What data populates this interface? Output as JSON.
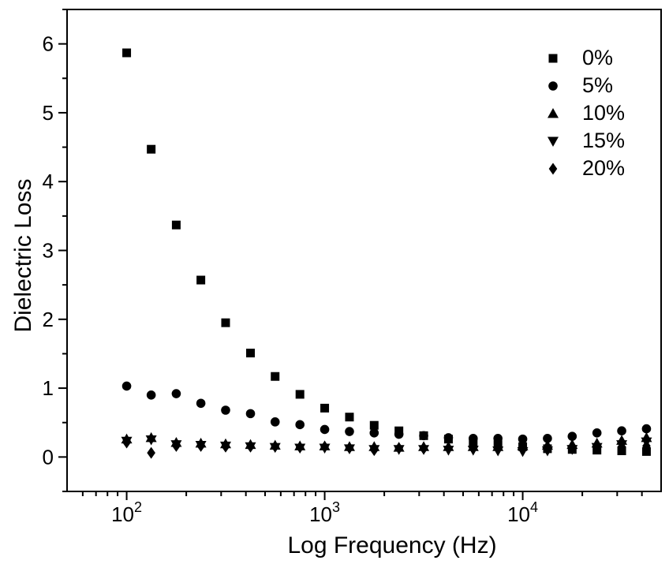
{
  "figure": {
    "background": "#ffffff",
    "foreground": "#000000"
  },
  "chart_data": {
    "type": "scatter",
    "title": "",
    "xlabel": "Log Frequency (Hz)",
    "ylabel": "Dielectric Loss",
    "x_scale": "log",
    "xlim": [
      50,
      50000
    ],
    "ylim": [
      -0.5,
      6.5
    ],
    "grid": false,
    "legend_position": "top-right",
    "marker_color": "#000000",
    "x_major_ticks": [
      {
        "value": 100,
        "label_base": "10",
        "label_exp": "2"
      },
      {
        "value": 1000,
        "label_base": "10",
        "label_exp": "3"
      },
      {
        "value": 10000,
        "label_base": "10",
        "label_exp": "4"
      }
    ],
    "y_major_ticks": [
      0,
      1,
      2,
      3,
      4,
      5,
      6
    ],
    "y_minor_step": 0.5,
    "x": [
      100,
      133,
      178,
      237,
      316,
      422,
      562,
      750,
      1000,
      1334,
      1778,
      2371,
      3162,
      4217,
      5623,
      7499,
      10000,
      13335,
      17783,
      23714,
      31623,
      42170
    ],
    "series": [
      {
        "name": "0%",
        "marker": "square",
        "values": [
          5.87,
          4.47,
          3.37,
          2.57,
          1.95,
          1.51,
          1.17,
          0.91,
          0.71,
          0.58,
          0.46,
          0.38,
          0.31,
          0.26,
          0.22,
          0.18,
          0.15,
          0.12,
          0.11,
          0.1,
          0.09,
          0.08
        ]
      },
      {
        "name": "5%",
        "marker": "circle",
        "values": [
          1.03,
          0.9,
          0.92,
          0.78,
          0.68,
          0.63,
          0.51,
          0.47,
          0.4,
          0.37,
          0.35,
          0.33,
          0.31,
          0.28,
          0.27,
          0.27,
          0.26,
          0.27,
          0.3,
          0.35,
          0.38,
          0.41
        ]
      },
      {
        "name": "10%",
        "marker": "triangle-up",
        "values": [
          0.26,
          0.28,
          0.21,
          0.2,
          0.19,
          0.18,
          0.17,
          0.16,
          0.16,
          0.15,
          0.15,
          0.14,
          0.15,
          0.15,
          0.15,
          0.15,
          0.16,
          0.17,
          0.18,
          0.2,
          0.24,
          0.28
        ]
      },
      {
        "name": "15%",
        "marker": "triangle-down",
        "values": [
          0.23,
          0.25,
          0.18,
          0.17,
          0.16,
          0.15,
          0.14,
          0.13,
          0.13,
          0.12,
          0.11,
          0.11,
          0.11,
          0.1,
          0.1,
          0.09,
          0.08,
          0.09,
          0.11,
          0.14,
          0.18,
          0.22
        ]
      },
      {
        "name": "20%",
        "marker": "diamond",
        "values": [
          0.21,
          0.06,
          0.16,
          0.16,
          0.15,
          0.15,
          0.15,
          0.14,
          0.15,
          0.13,
          0.1,
          0.13,
          0.12,
          0.13,
          0.13,
          0.13,
          0.13,
          0.14,
          0.14,
          0.15,
          0.15,
          0.16
        ]
      }
    ]
  }
}
